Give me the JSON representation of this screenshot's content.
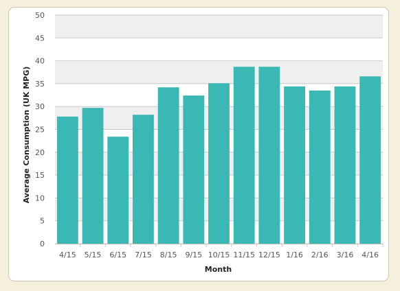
{
  "chart_data": {
    "type": "bar",
    "title": "",
    "xlabel": "Month",
    "ylabel": "Average Consumption (UK MPG)",
    "categories": [
      "4/15",
      "5/15",
      "6/15",
      "7/15",
      "8/15",
      "9/15",
      "10/15",
      "11/15",
      "12/15",
      "1/16",
      "2/16",
      "3/16",
      "4/16"
    ],
    "series": [
      {
        "values": [
          27.8,
          29.7,
          23.4,
          28.2,
          34.2,
          32.4,
          35.1,
          38.7,
          38.7,
          34.4,
          33.5,
          34.4,
          36.6
        ]
      }
    ],
    "ylim": [
      0,
      50
    ],
    "yticks": [
      0,
      5,
      10,
      15,
      20,
      25,
      30,
      35,
      40,
      45,
      50
    ],
    "grid": true,
    "legend": "none",
    "colors": {
      "bar": "#3ab8b3",
      "band": "#efefef",
      "grid": "#c8c8c8"
    }
  }
}
